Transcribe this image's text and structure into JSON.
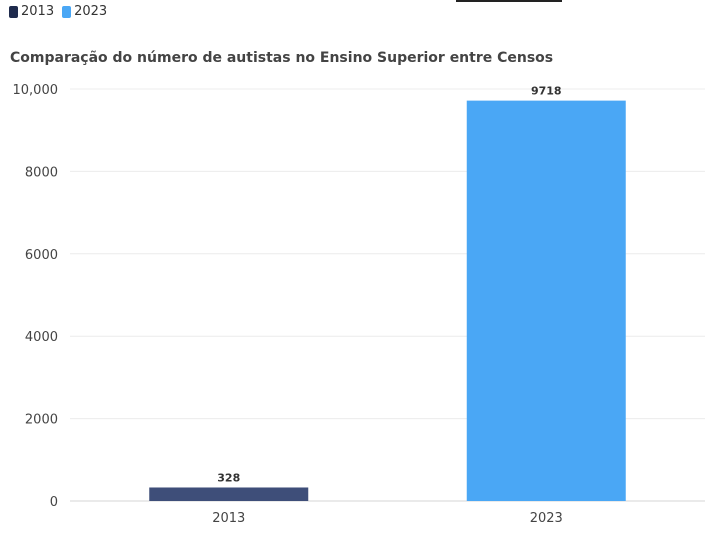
{
  "legend": [
    {
      "label": "2013",
      "color": "#1f2b4d"
    },
    {
      "label": "2023",
      "color": "#4aa7f5"
    }
  ],
  "chart_data": {
    "type": "bar",
    "title": "Comparação do número de autistas no Ensino Superior entre Censos",
    "xlabel": "",
    "ylabel": "",
    "categories": [
      "2013",
      "2023"
    ],
    "values": [
      328,
      9718
    ],
    "colors": [
      "#3e4e79",
      "#4aa7f5"
    ],
    "ylim": [
      0,
      10000
    ],
    "yticks": [
      0,
      2000,
      4000,
      6000,
      8000,
      10000
    ],
    "ytick_labels": [
      "0",
      "2000",
      "4000",
      "6000",
      "8000",
      "10,000"
    ],
    "data_labels": [
      "328",
      "9718"
    ],
    "grid": true,
    "legend_position": "top-left"
  }
}
